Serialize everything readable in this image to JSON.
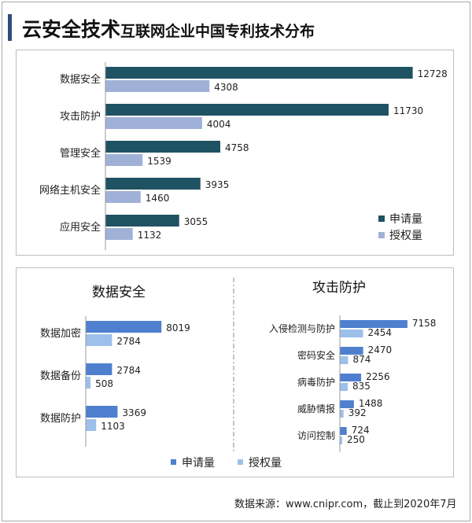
{
  "title": {
    "main": "云安全技术",
    "sub": "互联网企业中国专利技术分布"
  },
  "source": "数据来源：www.cnipr.com，截止到2020年7月",
  "colors": {
    "top_apply": "#1f5263",
    "top_grant": "#9fb1d6",
    "bottom_apply": "#4f7fcf",
    "bottom_grant": "#9cc0ea",
    "title_accent": "#2e4d78"
  },
  "chart_data": [
    {
      "type": "bar",
      "orientation": "horizontal",
      "categories": [
        "数据安全",
        "攻击防护",
        "管理安全",
        "网络主机安全",
        "应用安全"
      ],
      "series": [
        {
          "name": "申请量",
          "values": [
            12728,
            11730,
            4758,
            3935,
            3055
          ]
        },
        {
          "name": "授权量",
          "values": [
            4308,
            4004,
            1539,
            1460,
            1132
          ]
        }
      ],
      "xlim": [
        0,
        14500
      ],
      "legend": "bottom-right",
      "grid": false
    },
    {
      "type": "bar",
      "orientation": "horizontal",
      "title": "数据安全",
      "categories": [
        "数据加密",
        "数据备份",
        "数据防护"
      ],
      "series": [
        {
          "name": "申请量",
          "values": [
            8019,
            2784,
            3369
          ]
        },
        {
          "name": "授权量",
          "values": [
            2784,
            508,
            1103
          ]
        }
      ],
      "xlim": [
        0,
        10000
      ],
      "legend": "bottom",
      "grid": false
    },
    {
      "type": "bar",
      "orientation": "horizontal",
      "title": "攻击防护",
      "categories": [
        "入侵检测与防护",
        "密码安全",
        "病毒防护",
        "威胁情报",
        "访问控制"
      ],
      "series": [
        {
          "name": "申请量",
          "values": [
            7158,
            2470,
            2256,
            1488,
            724
          ]
        },
        {
          "name": "授权量",
          "values": [
            2454,
            874,
            835,
            392,
            250
          ]
        }
      ],
      "xlim": [
        0,
        10000
      ],
      "legend": "bottom",
      "grid": false
    }
  ]
}
